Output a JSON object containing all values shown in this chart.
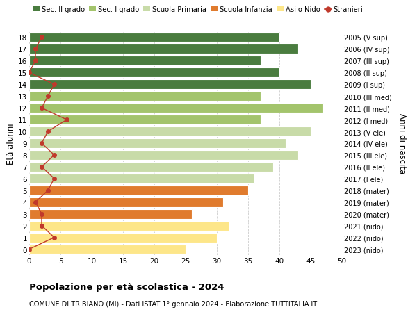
{
  "ages": [
    0,
    1,
    2,
    3,
    4,
    5,
    6,
    7,
    8,
    9,
    10,
    11,
    12,
    13,
    14,
    15,
    16,
    17,
    18
  ],
  "years": [
    "2023 (nido)",
    "2022 (nido)",
    "2021 (nido)",
    "2020 (mater)",
    "2019 (mater)",
    "2018 (mater)",
    "2017 (I ele)",
    "2016 (II ele)",
    "2015 (III ele)",
    "2014 (IV ele)",
    "2013 (V ele)",
    "2012 (I med)",
    "2011 (II med)",
    "2010 (III med)",
    "2009 (I sup)",
    "2008 (II sup)",
    "2007 (III sup)",
    "2006 (IV sup)",
    "2005 (V sup)"
  ],
  "bar_values": [
    25,
    30,
    32,
    26,
    31,
    35,
    36,
    39,
    43,
    41,
    45,
    37,
    47,
    37,
    45,
    40,
    37,
    43,
    40
  ],
  "stranieri_values": [
    0,
    4,
    2,
    2,
    1,
    3,
    4,
    2,
    4,
    2,
    3,
    6,
    2,
    3,
    4,
    0,
    1,
    1,
    2
  ],
  "bar_colors": [
    "#fde689",
    "#fde689",
    "#fde689",
    "#e07b2e",
    "#e07b2e",
    "#e07b2e",
    "#c8dba8",
    "#c8dba8",
    "#c8dba8",
    "#c8dba8",
    "#c8dba8",
    "#a3c46c",
    "#a3c46c",
    "#a3c46c",
    "#4a7c3f",
    "#4a7c3f",
    "#4a7c3f",
    "#4a7c3f",
    "#4a7c3f"
  ],
  "legend_labels": [
    "Sec. II grado",
    "Sec. I grado",
    "Scuola Primaria",
    "Scuola Infanzia",
    "Asilo Nido",
    "Stranieri"
  ],
  "legend_colors": [
    "#4a7c3f",
    "#a3c46c",
    "#c8dba8",
    "#e07b2e",
    "#fde689",
    "#c0392b"
  ],
  "ylabel_left": "Età alunni",
  "ylabel_right": "Anni di nascita",
  "title": "Popolazione per età scolastica - 2024",
  "subtitle": "COMUNE DI TRIBIANO (MI) - Dati ISTAT 1° gennaio 2024 - Elaborazione TUTTITALIA.IT",
  "xlim": [
    0,
    50
  ],
  "xticks": [
    0,
    5,
    10,
    15,
    20,
    25,
    30,
    35,
    40,
    45,
    50
  ],
  "stranieri_color": "#c0392b",
  "bg_color": "#ffffff",
  "bar_height": 0.82,
  "grid_color": "#cccccc"
}
